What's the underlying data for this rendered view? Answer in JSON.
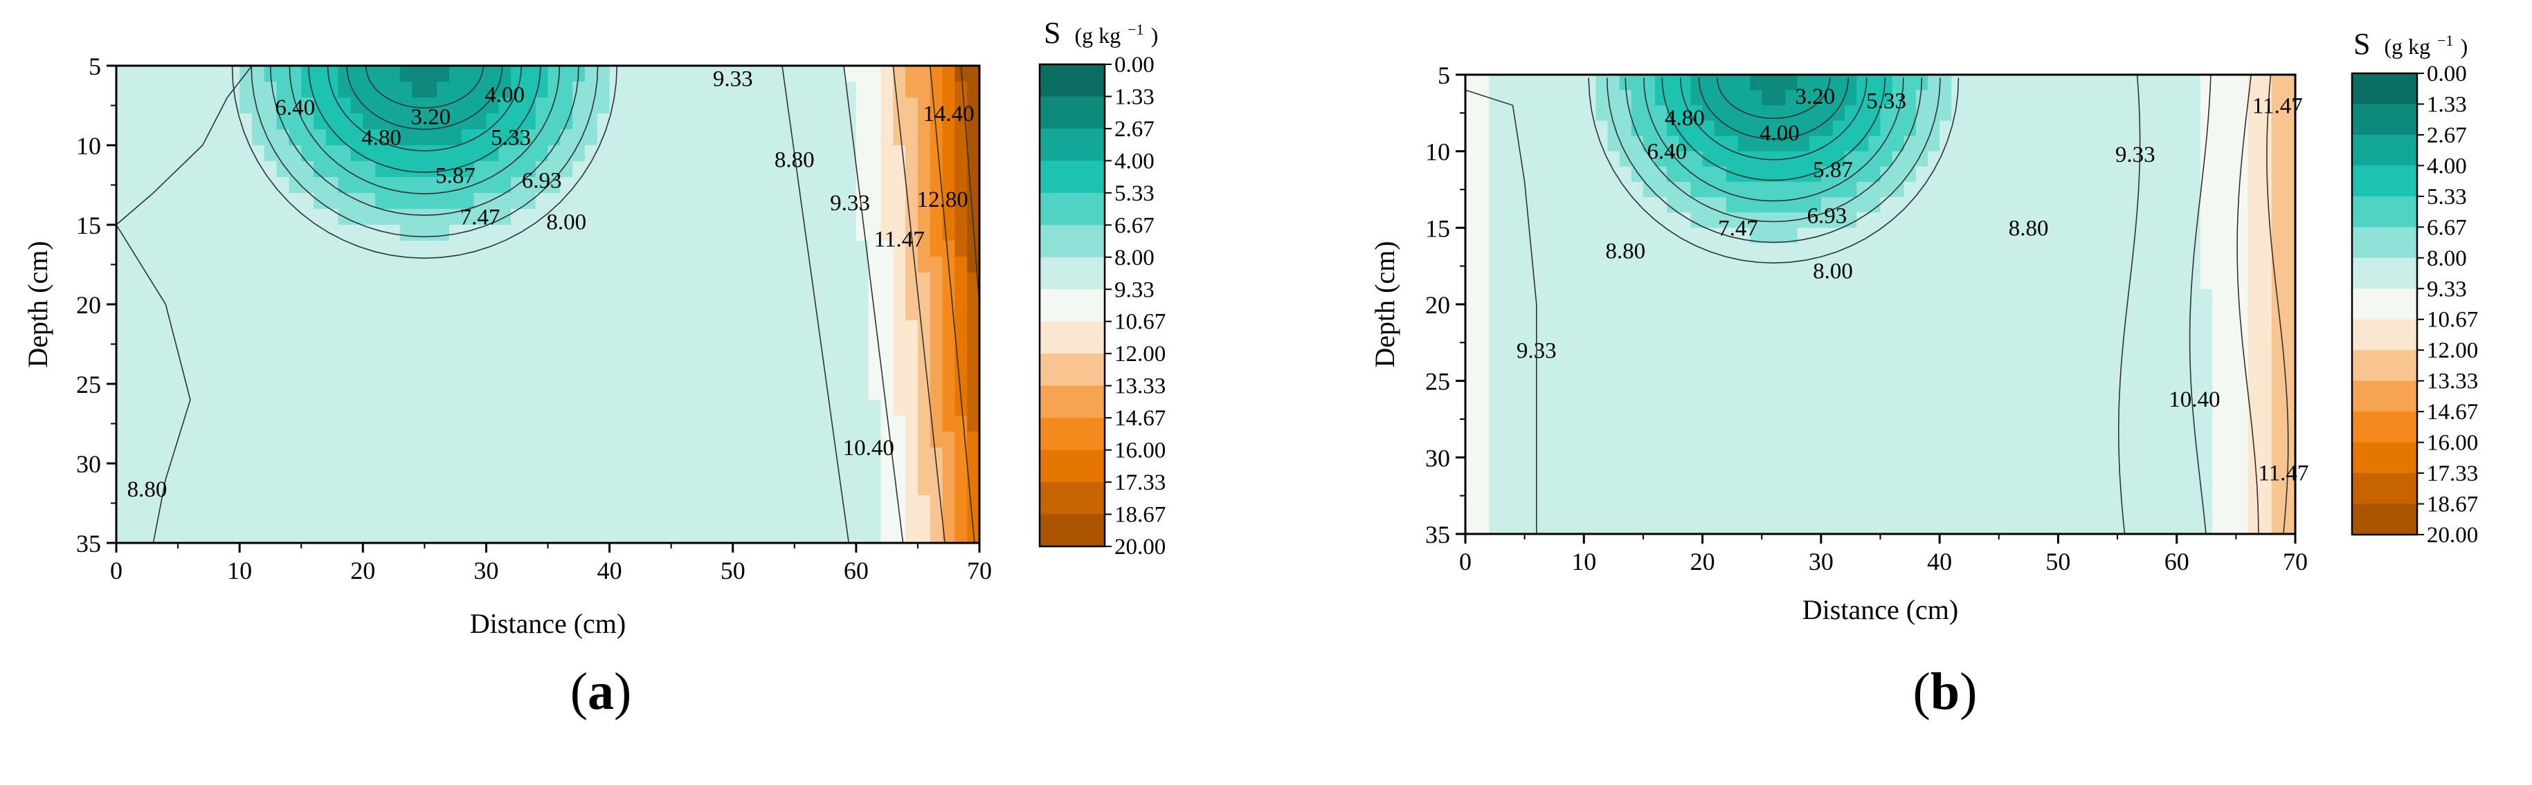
{
  "figure": {
    "panels": [
      {
        "letter": "a",
        "open": "(",
        "close": ")"
      },
      {
        "letter": "b",
        "open": "(",
        "close": ")"
      }
    ]
  },
  "chart_data": [
    {
      "type": "heatmap",
      "subtype": "filled-contour",
      "panel": "a",
      "title": "",
      "xlabel": "Distance (cm)",
      "ylabel": "Depth (cm)",
      "xlim": [
        0,
        70
      ],
      "ylim": [
        5,
        35
      ],
      "y_inverted": true,
      "xticks": [
        0,
        10,
        20,
        30,
        40,
        50,
        60,
        70
      ],
      "yticks": [
        5,
        10,
        15,
        20,
        25,
        30,
        35
      ],
      "colorbar": {
        "title_main": "S",
        "title_units": "(g kg",
        "title_sup": "−1",
        "title_close": ")",
        "levels": [
          "0.00",
          "1.33",
          "2.67",
          "4.00",
          "5.33",
          "6.67",
          "8.00",
          "9.33",
          "10.67",
          "12.00",
          "13.33",
          "14.67",
          "16.00",
          "17.33",
          "18.67",
          "20.00"
        ],
        "range": [
          0,
          20
        ],
        "colors": [
          "#0b6e62",
          "#0e8a7c",
          "#12a796",
          "#1ec2b0",
          "#4fd3c4",
          "#8fe2d7",
          "#c9efe8",
          "#f4f8f3",
          "#fbe7cf",
          "#f8c591",
          "#f6a352",
          "#f48a1e",
          "#e57600",
          "#c86400",
          "#ab5400"
        ]
      },
      "contour_labels": [
        {
          "text": "3.20",
          "x": 25.5,
          "y": 8.2
        },
        {
          "text": "4.00",
          "x": 31.5,
          "y": 6.8
        },
        {
          "text": "6.40",
          "x": 14.5,
          "y": 7.6
        },
        {
          "text": "4.80",
          "x": 21.5,
          "y": 9.5
        },
        {
          "text": "5.33",
          "x": 32.0,
          "y": 9.5
        },
        {
          "text": "5.87",
          "x": 27.5,
          "y": 11.9
        },
        {
          "text": "6.93",
          "x": 34.5,
          "y": 12.2
        },
        {
          "text": "7.47",
          "x": 29.5,
          "y": 14.5
        },
        {
          "text": "8.00",
          "x": 36.5,
          "y": 14.8
        },
        {
          "text": "9.33",
          "x": 50.0,
          "y": 5.8
        },
        {
          "text": "8.80",
          "x": 55.0,
          "y": 10.9
        },
        {
          "text": "9.33",
          "x": 59.5,
          "y": 13.6
        },
        {
          "text": "14.40",
          "x": 67.5,
          "y": 8.0
        },
        {
          "text": "12.80",
          "x": 67.0,
          "y": 13.4
        },
        {
          "text": "11.47",
          "x": 63.5,
          "y": 15.9
        },
        {
          "text": "10.40",
          "x": 61.0,
          "y": 29.0
        },
        {
          "text": "8.80",
          "x": 2.5,
          "y": 31.6
        }
      ],
      "field_sample": {
        "description": "salt content S (g/kg); low near x=25,y=5, high near x=70",
        "bowl_center": [
          25,
          5
        ],
        "bowl_min": 2.4,
        "right_max": 20.0
      }
    },
    {
      "type": "heatmap",
      "subtype": "filled-contour",
      "panel": "b",
      "title": "",
      "xlabel": "Distance (cm)",
      "ylabel": "Depth (cm)",
      "xlim": [
        0,
        70
      ],
      "ylim": [
        5,
        35
      ],
      "y_inverted": true,
      "xticks": [
        0,
        10,
        20,
        30,
        40,
        50,
        60,
        70
      ],
      "yticks": [
        5,
        10,
        15,
        20,
        25,
        30,
        35
      ],
      "colorbar": {
        "title_main": "S",
        "title_units": "(g kg",
        "title_sup": "−1",
        "title_close": ")",
        "levels": [
          "0.00",
          "1.33",
          "2.67",
          "4.00",
          "5.33",
          "6.67",
          "8.00",
          "9.33",
          "10.67",
          "12.00",
          "13.33",
          "14.67",
          "16.00",
          "17.33",
          "18.67",
          "20.00"
        ],
        "range": [
          0,
          20
        ],
        "colors": [
          "#0b6e62",
          "#0e8a7c",
          "#12a796",
          "#1ec2b0",
          "#4fd3c4",
          "#8fe2d7",
          "#c9efe8",
          "#f4f8f3",
          "#fbe7cf",
          "#f8c591",
          "#f6a352",
          "#f48a1e",
          "#e57600",
          "#c86400",
          "#ab5400"
        ]
      },
      "contour_labels": [
        {
          "text": "3.20",
          "x": 29.5,
          "y": 6.4
        },
        {
          "text": "5.33",
          "x": 35.5,
          "y": 6.7
        },
        {
          "text": "4.80",
          "x": 18.5,
          "y": 7.8
        },
        {
          "text": "4.00",
          "x": 26.5,
          "y": 8.8
        },
        {
          "text": "6.40",
          "x": 17.0,
          "y": 10.0
        },
        {
          "text": "5.87",
          "x": 31.0,
          "y": 11.2
        },
        {
          "text": "7.47",
          "x": 23.0,
          "y": 15.0
        },
        {
          "text": "6.93",
          "x": 30.5,
          "y": 14.2
        },
        {
          "text": "8.00",
          "x": 31.0,
          "y": 17.8
        },
        {
          "text": "8.80",
          "x": 13.5,
          "y": 16.5
        },
        {
          "text": "9.33",
          "x": 6.0,
          "y": 23.0
        },
        {
          "text": "8.80",
          "x": 47.5,
          "y": 15.0
        },
        {
          "text": "9.33",
          "x": 56.5,
          "y": 10.2
        },
        {
          "text": "11.47",
          "x": 68.5,
          "y": 7.0
        },
        {
          "text": "10.40",
          "x": 61.5,
          "y": 26.2
        },
        {
          "text": "11.47",
          "x": 69.0,
          "y": 31.0
        }
      ],
      "field_sample": {
        "description": "salt content S (g/kg); low near x=26,y=5, high near x=70",
        "bowl_center": [
          26,
          5
        ],
        "bowl_min": 2.4,
        "right_max": 13.0
      }
    }
  ]
}
